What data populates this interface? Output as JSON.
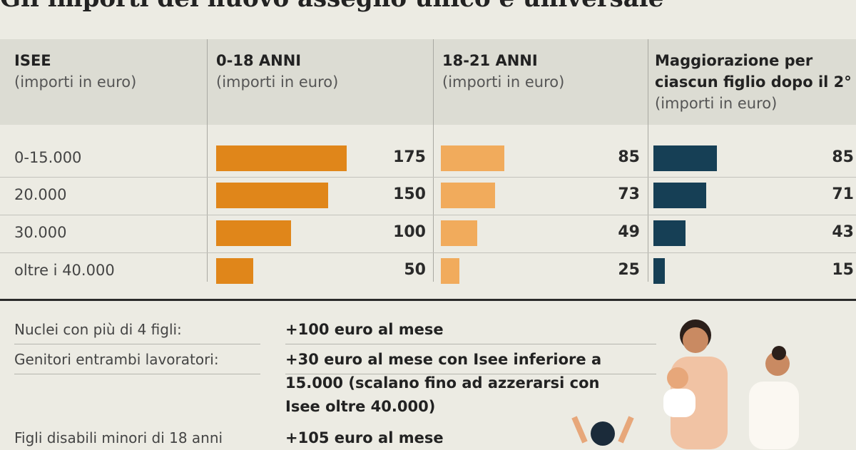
{
  "title": "Gli importi del nuovo assegno unico e universale",
  "table": {
    "columns": [
      {
        "label": "ISEE",
        "unit": "(importi in euro)"
      },
      {
        "label": "0-18 ANNI",
        "unit": "(importi in euro)",
        "color": "#e0861a"
      },
      {
        "label": "18-21 ANNI",
        "unit": "(importi in euro)",
        "color": "#f1ab5c"
      },
      {
        "label": "Maggiorazione per ciascun figlio dopo il 2°",
        "unit": "(importi in euro)",
        "color": "#163f55"
      }
    ],
    "rows": [
      {
        "isee": "0-15.000",
        "values": [
          175,
          85,
          85
        ]
      },
      {
        "isee": "20.000",
        "values": [
          150,
          73,
          71
        ]
      },
      {
        "isee": "30.000",
        "values": [
          100,
          49,
          43
        ]
      },
      {
        "isee": "oltre i 40.000",
        "values": [
          50,
          25,
          15
        ]
      }
    ]
  },
  "notes": [
    {
      "label": "Nuclei con più di 4 figli:",
      "text": "+100 euro al mese"
    },
    {
      "label": "Genitori entrambi lavoratori:",
      "text": "+30 euro al mese con Isee inferiore a 15.000 (scalano fino ad azzerarsi con Isee oltre 40.000)"
    },
    {
      "label": "Figli disabili minori di 18 anni",
      "text": "+105 euro al mese"
    }
  ]
}
